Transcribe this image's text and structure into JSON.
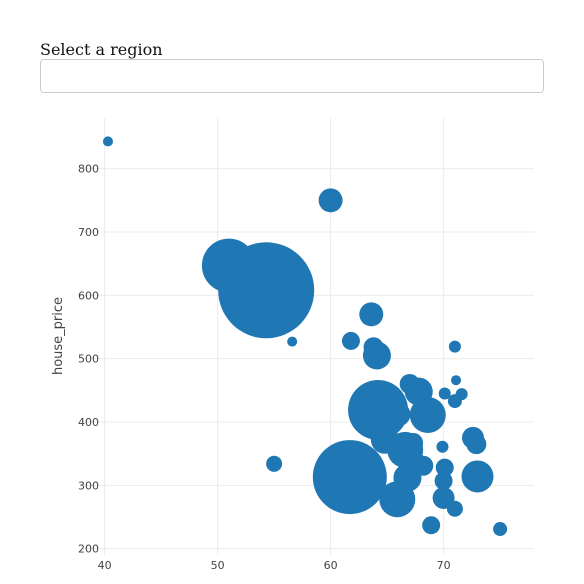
{
  "filter": {
    "label": "Select a region",
    "value": ""
  },
  "chart_data": {
    "type": "scatter",
    "title": "",
    "xlabel": "",
    "ylabel": "house_price",
    "xlim": [
      38,
      78
    ],
    "ylim": [
      190,
      880
    ],
    "xticks": [
      40,
      50,
      60,
      70
    ],
    "yticks": [
      200,
      300,
      400,
      500,
      600,
      700,
      800
    ],
    "grid": true,
    "legend": "none",
    "marker_color": "#1f77b4",
    "points": [
      {
        "x": 40.3,
        "y": 843,
        "size": 5
      },
      {
        "x": 60.0,
        "y": 750,
        "size": 12
      },
      {
        "x": 51.0,
        "y": 647,
        "size": 27
      },
      {
        "x": 54.3,
        "y": 608,
        "size": 48
      },
      {
        "x": 56.6,
        "y": 527,
        "size": 5
      },
      {
        "x": 61.8,
        "y": 528,
        "size": 9
      },
      {
        "x": 63.6,
        "y": 570,
        "size": 12
      },
      {
        "x": 63.8,
        "y": 518,
        "size": 10
      },
      {
        "x": 64.1,
        "y": 505,
        "size": 14
      },
      {
        "x": 71.0,
        "y": 519,
        "size": 6
      },
      {
        "x": 71.1,
        "y": 466,
        "size": 5
      },
      {
        "x": 67.0,
        "y": 460,
        "size": 10
      },
      {
        "x": 67.8,
        "y": 448,
        "size": 14
      },
      {
        "x": 70.1,
        "y": 445,
        "size": 6
      },
      {
        "x": 71.6,
        "y": 444,
        "size": 6
      },
      {
        "x": 71.0,
        "y": 433,
        "size": 7
      },
      {
        "x": 64.2,
        "y": 419,
        "size": 30
      },
      {
        "x": 66.0,
        "y": 412,
        "size": 12
      },
      {
        "x": 68.6,
        "y": 411,
        "size": 18
      },
      {
        "x": 72.6,
        "y": 375,
        "size": 11
      },
      {
        "x": 72.9,
        "y": 365,
        "size": 10
      },
      {
        "x": 64.8,
        "y": 372,
        "size": 14
      },
      {
        "x": 66.6,
        "y": 356,
        "size": 18
      },
      {
        "x": 67.3,
        "y": 367,
        "size": 10
      },
      {
        "x": 69.9,
        "y": 361,
        "size": 6
      },
      {
        "x": 68.2,
        "y": 331,
        "size": 10
      },
      {
        "x": 67.5,
        "y": 343,
        "size": 8
      },
      {
        "x": 55.0,
        "y": 334,
        "size": 8
      },
      {
        "x": 61.7,
        "y": 313,
        "size": 37
      },
      {
        "x": 66.8,
        "y": 312,
        "size": 14
      },
      {
        "x": 70.1,
        "y": 328,
        "size": 9
      },
      {
        "x": 70.0,
        "y": 307,
        "size": 9
      },
      {
        "x": 73.0,
        "y": 314,
        "size": 16
      },
      {
        "x": 65.9,
        "y": 278,
        "size": 18
      },
      {
        "x": 70.0,
        "y": 280,
        "size": 11
      },
      {
        "x": 71.0,
        "y": 263,
        "size": 8
      },
      {
        "x": 68.9,
        "y": 237,
        "size": 9
      },
      {
        "x": 75.0,
        "y": 231,
        "size": 7
      }
    ]
  }
}
